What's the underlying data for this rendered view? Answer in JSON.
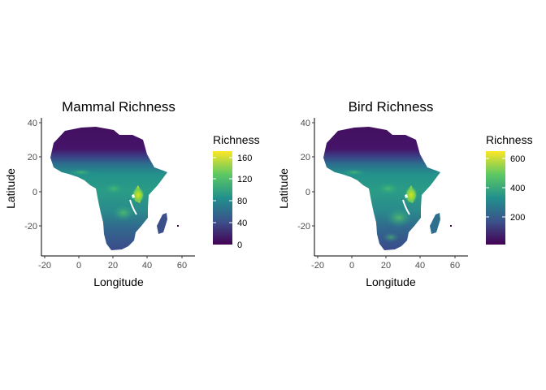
{
  "colors": {
    "viridis": [
      "#440154",
      "#3B528B",
      "#21908C",
      "#5DC863",
      "#FDE725"
    ],
    "ocean": "#ffffff"
  },
  "maps": [
    {
      "title": "Mammal Richness",
      "xlabel": "Longitude",
      "ylabel": "Latitude",
      "x_ticks": [
        "-20",
        "0",
        "20",
        "40",
        "60"
      ],
      "y_ticks": [
        "40",
        "20",
        "0",
        "-20"
      ],
      "legend_title": "Richness",
      "legend_ticks": [
        "160",
        "120",
        "80",
        "40",
        "0"
      ],
      "legend_range": [
        0,
        165
      ]
    },
    {
      "title": "Bird Richness",
      "xlabel": "Longitude",
      "ylabel": "Latitude",
      "x_ticks": [
        "-20",
        "0",
        "20",
        "40",
        "60"
      ],
      "y_ticks": [
        "40",
        "20",
        "0",
        "-20"
      ],
      "legend_title": "Richness",
      "legend_ticks": [
        "600",
        "400",
        "200"
      ],
      "legend_range": [
        0,
        650
      ]
    }
  ],
  "chart_data": [
    {
      "type": "heatmap",
      "title": "Mammal Richness",
      "xlabel": "Longitude",
      "ylabel": "Latitude",
      "xlim": [
        -23,
        68
      ],
      "ylim": [
        -38,
        42
      ],
      "color_scale": "viridis",
      "scale_range": [
        0,
        165
      ],
      "legend_breaks": [
        0,
        40,
        80,
        120,
        160
      ],
      "legend_placement": "right",
      "grid": false
    },
    {
      "type": "heatmap",
      "title": "Bird Richness",
      "xlabel": "Longitude",
      "ylabel": "Latitude",
      "xlim": [
        -23,
        68
      ],
      "ylim": [
        -38,
        42
      ],
      "color_scale": "viridis",
      "scale_range": [
        0,
        650
      ],
      "legend_breaks": [
        200,
        400,
        600
      ],
      "legend_placement": "right",
      "grid": false
    }
  ]
}
